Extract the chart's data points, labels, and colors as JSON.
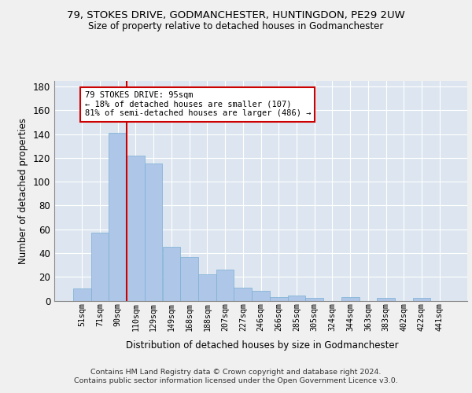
{
  "title_line1": "79, STOKES DRIVE, GODMANCHESTER, HUNTINGDON, PE29 2UW",
  "title_line2": "Size of property relative to detached houses in Godmanchester",
  "xlabel": "Distribution of detached houses by size in Godmanchester",
  "ylabel": "Number of detached properties",
  "bar_color": "#aec6e8",
  "bar_edge_color": "#7aafd4",
  "background_color": "#dde6f0",
  "grid_color": "#ffffff",
  "fig_background": "#f0f0f0",
  "categories": [
    "51sqm",
    "71sqm",
    "90sqm",
    "110sqm",
    "129sqm",
    "149sqm",
    "168sqm",
    "188sqm",
    "207sqm",
    "227sqm",
    "246sqm",
    "266sqm",
    "285sqm",
    "305sqm",
    "324sqm",
    "344sqm",
    "363sqm",
    "383sqm",
    "402sqm",
    "422sqm",
    "441sqm"
  ],
  "values": [
    10,
    57,
    141,
    122,
    115,
    45,
    37,
    22,
    26,
    11,
    8,
    3,
    4,
    2,
    0,
    3,
    0,
    2,
    0,
    2,
    0
  ],
  "ylim": [
    0,
    185
  ],
  "yticks": [
    0,
    20,
    40,
    60,
    80,
    100,
    120,
    140,
    160,
    180
  ],
  "vline_x_index": 2.5,
  "annotation_text": "79 STOKES DRIVE: 95sqm\n← 18% of detached houses are smaller (107)\n81% of semi-detached houses are larger (486) →",
  "annotation_box_color": "#ffffff",
  "annotation_box_edge_color": "#cc0000",
  "vline_color": "#cc0000",
  "footer_line1": "Contains HM Land Registry data © Crown copyright and database right 2024.",
  "footer_line2": "Contains public sector information licensed under the Open Government Licence v3.0."
}
